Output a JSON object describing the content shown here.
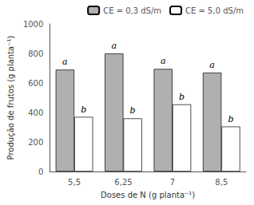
{
  "chart_data": {
    "type": "bar",
    "categories": [
      "5,5",
      "6,25",
      "7",
      "8,5"
    ],
    "series": [
      {
        "name": "CE = 0,3 dS/m",
        "color": "#B0B0B0",
        "values": [
          690,
          800,
          695,
          670
        ],
        "annotations": [
          "a",
          "a",
          "a",
          "a"
        ]
      },
      {
        "name": "CE = 5,0 dS/m",
        "color": "#FFFFFF",
        "values": [
          370,
          360,
          455,
          305
        ],
        "annotations": [
          "b",
          "b",
          "b",
          "b"
        ]
      }
    ],
    "xlabel": "Doses de N (g planta⁻¹)",
    "ylabel": "Produção de frutos (g planta⁻¹)",
    "ylim": [
      0,
      1000
    ],
    "yticks": [
      0,
      200,
      400,
      600,
      800,
      1000
    ],
    "grid": false,
    "legend": "upper right"
  }
}
